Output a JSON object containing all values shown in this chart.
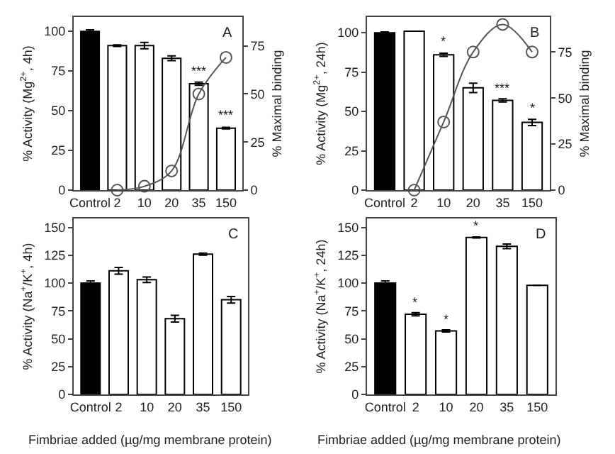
{
  "chart_data": [
    {
      "type": "bar",
      "categories": [
        "Control",
        "2",
        "10",
        "20",
        "35",
        "150"
      ],
      "ylabel": "% Activity (Mg$^{2+}$, 4h)",
      "y2label": "% Maximal binding",
      "ylim": [
        0,
        109
      ],
      "yticks": [
        0,
        25,
        50,
        75,
        100
      ],
      "y2lim": [
        0,
        90
      ],
      "y2ticks": [
        0,
        25,
        50,
        75
      ],
      "marker": "circle",
      "grid": false,
      "series": [
        {
          "colors": [
            "#000000",
            "#ffffff",
            "#ffffff",
            "#ffffff",
            "#ffffff",
            "#ffffff"
          ],
          "values": [
            100,
            91,
            91,
            83,
            67,
            39
          ],
          "errors": [
            1,
            0.5,
            2,
            1.5,
            1,
            0.5
          ]
        },
        {
          "type": "line",
          "axis": "y2",
          "color": "#555555",
          "values": [
            null,
            0,
            2,
            10,
            50,
            69
          ]
        }
      ],
      "annotations": [
        "A",
        {
          "text": "***",
          "x": "35",
          "y": 69
        },
        {
          "text": "***",
          "x": "150",
          "y": 41
        }
      ]
    },
    {
      "type": "bar",
      "categories": [
        "Control",
        "2",
        "10",
        "20",
        "35",
        "150"
      ],
      "ylabel": "% Activity (Mg$^{2+}$, 24h)",
      "y2label": "% Maximal binding",
      "ylim": [
        0,
        110
      ],
      "yticks": [
        0,
        25,
        50,
        75,
        100
      ],
      "y2lim": [
        0,
        94
      ],
      "y2ticks": [
        0,
        25,
        50,
        75
      ],
      "marker": "circle",
      "grid": false,
      "series": [
        {
          "colors": [
            "#000000",
            "#ffffff",
            "#ffffff",
            "#ffffff",
            "#ffffff",
            "#ffffff"
          ],
          "values": [
            100,
            101,
            86,
            65,
            57,
            43
          ],
          "errors": [
            0.5,
            null,
            1,
            3,
            1,
            2
          ]
        },
        {
          "type": "line",
          "axis": "y2",
          "color": "#555555",
          "values": [
            null,
            0,
            37,
            75,
            90,
            75
          ]
        }
      ],
      "annotations": [
        "B",
        {
          "text": "*",
          "x": "10",
          "y": 88
        },
        {
          "text": "***",
          "x": "35",
          "y": 59
        },
        {
          "text": "*",
          "x": "150",
          "y": 46
        }
      ]
    },
    {
      "type": "bar",
      "categories": [
        "Control",
        "2",
        "10",
        "20",
        "35",
        "150"
      ],
      "ylabel": "% Activity (Na$^{+}$/K$^{+}$, 4h)",
      "xlabel": "Fimbriae added (µg/mg membrane protein)",
      "ylim": [
        0,
        158
      ],
      "yticks": [
        0,
        25,
        50,
        75,
        100,
        125,
        150
      ],
      "grid": false,
      "series": [
        {
          "colors": [
            "#000000",
            "#ffffff",
            "#ffffff",
            "#ffffff",
            "#ffffff",
            "#ffffff"
          ],
          "values": [
            100,
            111,
            103,
            68,
            126,
            85
          ],
          "errors": [
            2,
            3,
            2.5,
            3,
            1,
            3
          ]
        }
      ],
      "annotations": [
        "C"
      ]
    },
    {
      "type": "bar",
      "categories": [
        "Control",
        "2",
        "10",
        "20",
        "35",
        "150"
      ],
      "ylabel": "% Activity (Na$^{+}$/K$^{+}$, 24h)",
      "xlabel": "Fimbriae added (µg/mg membrane protein)",
      "ylim": [
        0,
        158
      ],
      "yticks": [
        0,
        25,
        50,
        75,
        100,
        125,
        150
      ],
      "grid": false,
      "series": [
        {
          "colors": [
            "#000000",
            "#ffffff",
            "#ffffff",
            "#ffffff",
            "#ffffff",
            "#ffffff"
          ],
          "values": [
            100,
            72,
            57,
            141,
            133,
            98
          ],
          "errors": [
            2,
            1.5,
            1,
            0.5,
            2,
            null
          ]
        }
      ],
      "annotations": [
        "D",
        {
          "text": "*",
          "x": "2",
          "y": 74
        },
        {
          "text": "*",
          "x": "10",
          "y": 59
        },
        {
          "text": "*",
          "x": "20",
          "y": 143
        }
      ]
    }
  ]
}
